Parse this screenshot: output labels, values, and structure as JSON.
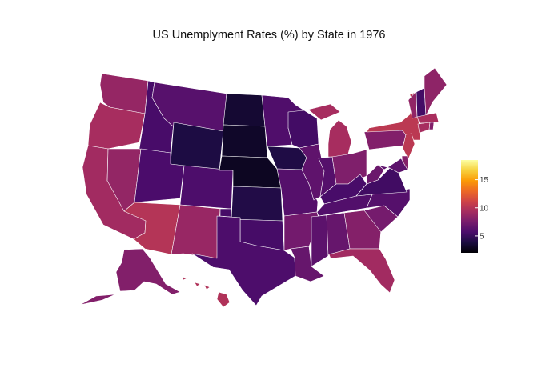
{
  "title": "US Unemplyment Rates (%) by State in 1976",
  "colorscale": {
    "name": "inferno",
    "range": [
      2,
      18.5
    ],
    "ticks": [
      {
        "value": 5,
        "label": "5"
      },
      {
        "value": 10,
        "label": "10"
      },
      {
        "value": 15,
        "label": "15"
      }
    ],
    "stops": [
      "#000004",
      "#1b0c41",
      "#4a0c6b",
      "#781c6d",
      "#a52c60",
      "#cf4446",
      "#ed6925",
      "#fb9b06",
      "#f7d13d",
      "#fcffa4"
    ]
  },
  "chart_data": {
    "type": "choropleth",
    "title": "US Unemplyment Rates (%) by State in 1976",
    "values": {
      "WA": 8.7,
      "OR": 9.4,
      "CA": 9.2,
      "NV": 8.6,
      "ID": 5.6,
      "MT": 6.2,
      "WY": 3.9,
      "UT": 5.7,
      "CO": 5.8,
      "AZ": 10.0,
      "NM": 8.8,
      "ND": 3.4,
      "SD": 3.1,
      "NE": 2.9,
      "KS": 4.1,
      "OK": 5.5,
      "TX": 5.8,
      "MN": 5.9,
      "IA": 4.0,
      "MO": 6.1,
      "AR": 7.3,
      "LA": 6.8,
      "WI": 5.4,
      "IL": 6.5,
      "MI": 9.4,
      "IN": 6.1,
      "OH": 7.8,
      "KY": 5.6,
      "TN": 6.0,
      "MS": 6.4,
      "AL": 6.8,
      "GA": 8.0,
      "FL": 9.2,
      "SC": 7.4,
      "NC": 6.1,
      "VA": 5.3,
      "WV": 7.0,
      "PA": 7.9,
      "NY": 10.3,
      "VT": 8.5,
      "NH": 5.4,
      "ME": 8.4,
      "MA": 9.5,
      "CT": 9.4,
      "RI": 7.9,
      "NJ": 10.3,
      "DE": 8.0,
      "MD": 6.4,
      "AK": 7.9,
      "HI": 9.8
    }
  }
}
